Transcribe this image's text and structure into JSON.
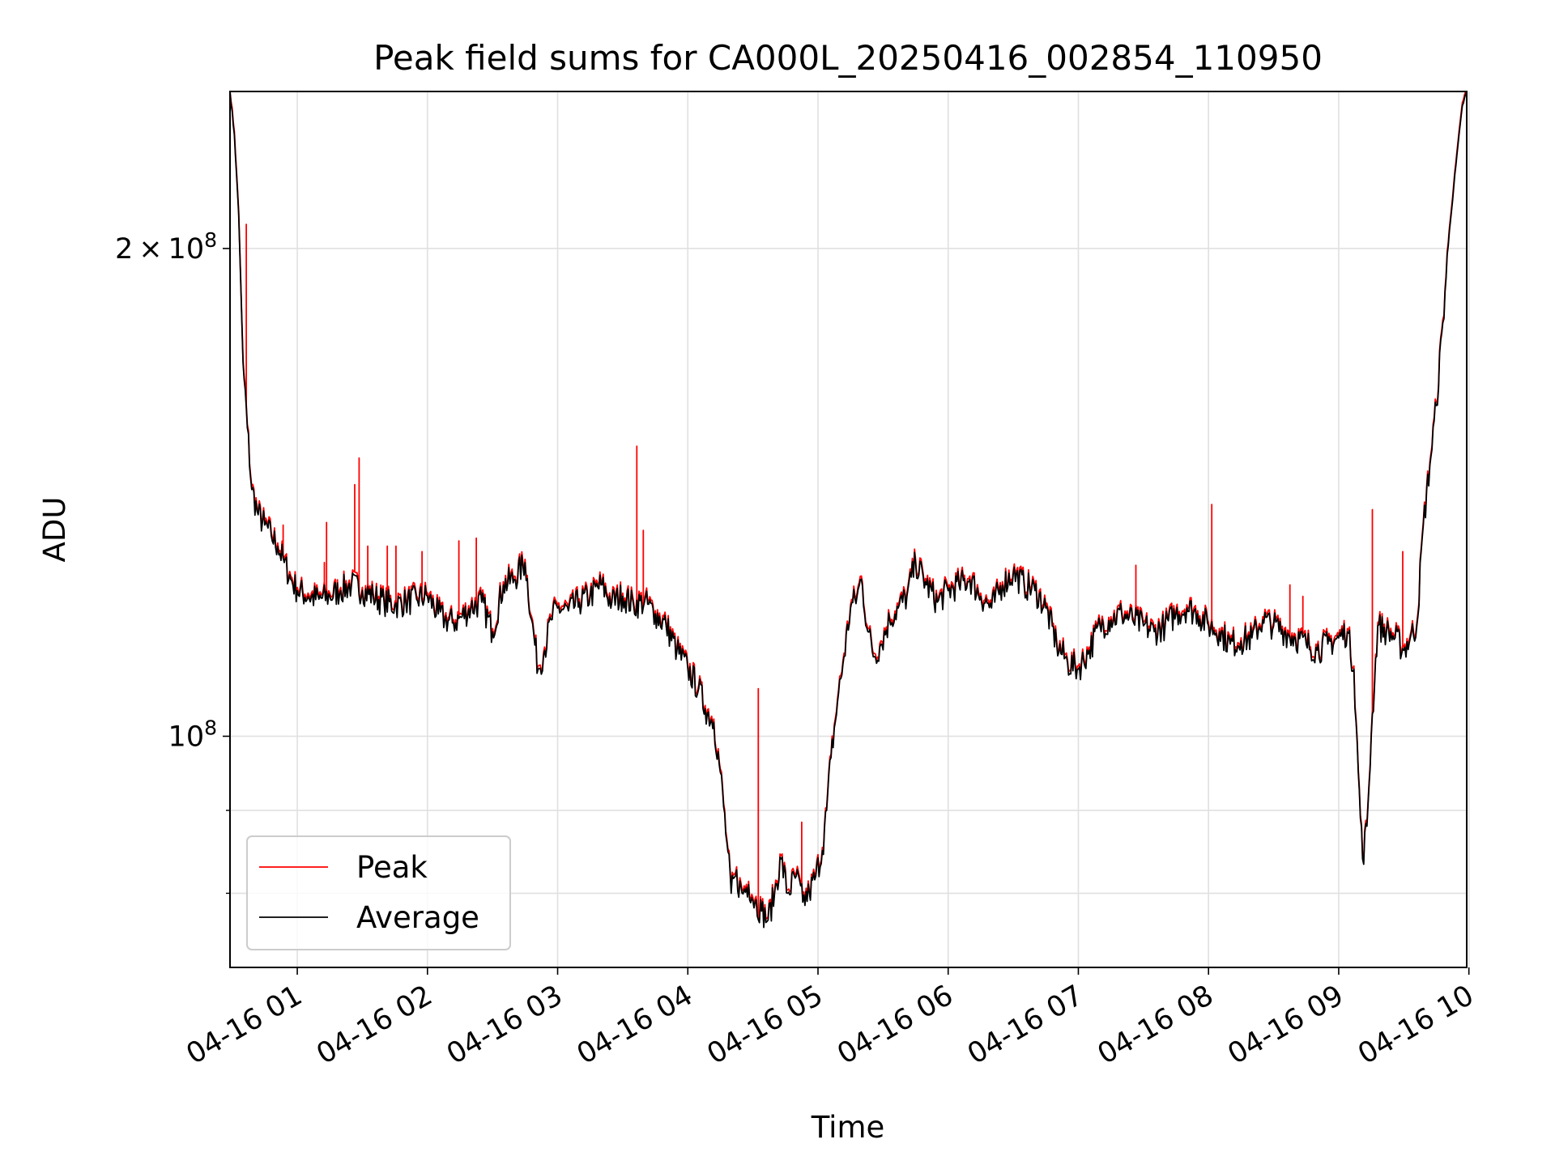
{
  "chart_data": {
    "type": "line",
    "title": "Peak field sums for CA000L_20250416_002854_110950",
    "xlabel": "Time",
    "ylabel": "ADU",
    "yscale": "log",
    "xlim": [
      "2025-04-16 00:29",
      "2025-04-16 09:59"
    ],
    "ylim": [
      72000000,
      250000000
    ],
    "grid": true,
    "legend_position": "lower-left",
    "x_ticks": [
      "04-16 01",
      "04-16 02",
      "04-16 03",
      "04-16 04",
      "04-16 05",
      "04-16 06",
      "04-16 07",
      "04-16 08",
      "04-16 09",
      "04-16 10"
    ],
    "y_tick_labels": [
      {
        "value": 100000000,
        "mantissa": "",
        "base": "10",
        "exp": "8"
      },
      {
        "value": 200000000,
        "mantissa": "2",
        "base": "10",
        "exp": "8"
      }
    ],
    "colors": {
      "peak": "#ff0000",
      "average": "#000000",
      "grid": "#e0e0e0"
    },
    "series": [
      {
        "name": "Average",
        "color": "#000000",
        "x": [
          "2025-04-16 00:29",
          "2025-04-16 00:31",
          "2025-04-16 00:33",
          "2025-04-16 00:35",
          "2025-04-16 00:37",
          "2025-04-16 00:39",
          "2025-04-16 00:42",
          "2025-04-16 00:45",
          "2025-04-16 00:48",
          "2025-04-16 00:51",
          "2025-04-16 00:54",
          "2025-04-16 00:57",
          "2025-04-16 01:00",
          "2025-04-16 01:05",
          "2025-04-16 01:10",
          "2025-04-16 01:15",
          "2025-04-16 01:20",
          "2025-04-16 01:25",
          "2025-04-16 01:30",
          "2025-04-16 01:35",
          "2025-04-16 01:40",
          "2025-04-16 01:45",
          "2025-04-16 01:50",
          "2025-04-16 01:55",
          "2025-04-16 02:00",
          "2025-04-16 02:05",
          "2025-04-16 02:08",
          "2025-04-16 02:12",
          "2025-04-16 02:16",
          "2025-04-16 02:20",
          "2025-04-16 02:25",
          "2025-04-16 02:30",
          "2025-04-16 02:35",
          "2025-04-16 02:40",
          "2025-04-16 02:45",
          "2025-04-16 02:48",
          "2025-04-16 02:51",
          "2025-04-16 02:54",
          "2025-04-16 02:57",
          "2025-04-16 03:00",
          "2025-04-16 03:05",
          "2025-04-16 03:10",
          "2025-04-16 03:15",
          "2025-04-16 03:20",
          "2025-04-16 03:25",
          "2025-04-16 03:30",
          "2025-04-16 03:35",
          "2025-04-16 03:40",
          "2025-04-16 03:45",
          "2025-04-16 03:50",
          "2025-04-16 03:55",
          "2025-04-16 04:00",
          "2025-04-16 04:05",
          "2025-04-16 04:08",
          "2025-04-16 04:12",
          "2025-04-16 04:15",
          "2025-04-16 04:18",
          "2025-04-16 04:20",
          "2025-04-16 04:22",
          "2025-04-16 04:25",
          "2025-04-16 04:28",
          "2025-04-16 04:31",
          "2025-04-16 04:34",
          "2025-04-16 04:37",
          "2025-04-16 04:40",
          "2025-04-16 04:43",
          "2025-04-16 04:46",
          "2025-04-16 04:50",
          "2025-04-16 04:53",
          "2025-04-16 04:56",
          "2025-04-16 04:59",
          "2025-04-16 05:02",
          "2025-04-16 05:04",
          "2025-04-16 05:06",
          "2025-04-16 05:09",
          "2025-04-16 05:12",
          "2025-04-16 05:15",
          "2025-04-16 05:18",
          "2025-04-16 05:20",
          "2025-04-16 05:23",
          "2025-04-16 05:26",
          "2025-04-16 05:29",
          "2025-04-16 05:33",
          "2025-04-16 05:37",
          "2025-04-16 05:41",
          "2025-04-16 05:45",
          "2025-04-16 05:50",
          "2025-04-16 05:55",
          "2025-04-16 06:00",
          "2025-04-16 06:05",
          "2025-04-16 06:10",
          "2025-04-16 06:15",
          "2025-04-16 06:20",
          "2025-04-16 06:25",
          "2025-04-16 06:30",
          "2025-04-16 06:35",
          "2025-04-16 06:40",
          "2025-04-16 06:45",
          "2025-04-16 06:50",
          "2025-04-16 06:55",
          "2025-04-16 07:00",
          "2025-04-16 07:05",
          "2025-04-16 07:10",
          "2025-04-16 07:15",
          "2025-04-16 07:20",
          "2025-04-16 07:25",
          "2025-04-16 07:30",
          "2025-04-16 07:35",
          "2025-04-16 07:40",
          "2025-04-16 07:45",
          "2025-04-16 07:50",
          "2025-04-16 07:55",
          "2025-04-16 08:00",
          "2025-04-16 08:05",
          "2025-04-16 08:10",
          "2025-04-16 08:15",
          "2025-04-16 08:20",
          "2025-04-16 08:25",
          "2025-04-16 08:30",
          "2025-04-16 08:35",
          "2025-04-16 08:40",
          "2025-04-16 08:45",
          "2025-04-16 08:50",
          "2025-04-16 08:55",
          "2025-04-16 09:00",
          "2025-04-16 09:04",
          "2025-04-16 09:07",
          "2025-04-16 09:09",
          "2025-04-16 09:11",
          "2025-04-16 09:13",
          "2025-04-16 09:15",
          "2025-04-16 09:18",
          "2025-04-16 09:22",
          "2025-04-16 09:26",
          "2025-04-16 09:30",
          "2025-04-16 09:33",
          "2025-04-16 09:36",
          "2025-04-16 09:39",
          "2025-04-16 09:42",
          "2025-04-16 09:45",
          "2025-04-16 09:48",
          "2025-04-16 09:51",
          "2025-04-16 09:54",
          "2025-04-16 09:57",
          "2025-04-16 09:59"
        ],
        "values": [
          250000000,
          235000000,
          210000000,
          170000000,
          155000000,
          142000000,
          137000000,
          135000000,
          133000000,
          131000000,
          128000000,
          125000000,
          123000000,
          122000000,
          121500000,
          122000000,
          123000000,
          124000000,
          123000000,
          122000000,
          121000000,
          120500000,
          121000000,
          121500000,
          122000000,
          119000000,
          118000000,
          117500000,
          118500000,
          120000000,
          121000000,
          116000000,
          124000000,
          125000000,
          128000000,
          118000000,
          110000000,
          113000000,
          118000000,
          120000000,
          119500000,
          121000000,
          122000000,
          124000000,
          121000000,
          122000000,
          120500000,
          121000000,
          119000000,
          117000000,
          113000000,
          110000000,
          107000000,
          104000000,
          102000000,
          95000000,
          86000000,
          80000000,
          82000000,
          80000000,
          81000000,
          79000000,
          78000000,
          77000000,
          80000000,
          84000000,
          80000000,
          82000000,
          79000000,
          80000000,
          82000000,
          85000000,
          90000000,
          97000000,
          105000000,
          112000000,
          120000000,
          122000000,
          125000000,
          116000000,
          112000000,
          114000000,
          118000000,
          120000000,
          122000000,
          128000000,
          124000000,
          121000000,
          123000000,
          124000000,
          125000000,
          122000000,
          120000000,
          124000000,
          126000000,
          124000000,
          123000000,
          120000000,
          114000000,
          111000000,
          110000000,
          113000000,
          117000000,
          118000000,
          119000000,
          118000000,
          117000000,
          116000000,
          117000000,
          119000000,
          120000000,
          119000000,
          117000000,
          116000000,
          114000000,
          114500000,
          115000000,
          118000000,
          117000000,
          116000000,
          115000000,
          114000000,
          113000000,
          114000000,
          115000000,
          116000000,
          110000000,
          95000000,
          84000000,
          88000000,
          100000000,
          117000000,
          116000000,
          115000000,
          113000000,
          115000000,
          117000000,
          135000000,
          147000000,
          160000000,
          180000000,
          205000000,
          225000000,
          245000000,
          250000000
        ]
      },
      {
        "name": "Peak",
        "color": "#ff0000",
        "spikes": [
          {
            "x": "2025-04-16 00:37",
            "y": 207000000
          },
          {
            "x": "2025-04-16 00:54",
            "y": 135000000
          },
          {
            "x": "2025-04-16 01:13",
            "y": 128000000
          },
          {
            "x": "2025-04-16 01:14",
            "y": 135500000
          },
          {
            "x": "2025-04-16 01:27",
            "y": 143000000
          },
          {
            "x": "2025-04-16 01:29",
            "y": 148500000
          },
          {
            "x": "2025-04-16 01:33",
            "y": 131000000
          },
          {
            "x": "2025-04-16 01:42",
            "y": 131000000
          },
          {
            "x": "2025-04-16 01:46",
            "y": 131000000
          },
          {
            "x": "2025-04-16 01:58",
            "y": 130000000
          },
          {
            "x": "2025-04-16 02:15",
            "y": 132000000
          },
          {
            "x": "2025-04-16 02:23",
            "y": 132500000
          },
          {
            "x": "2025-04-16 03:37",
            "y": 151000000
          },
          {
            "x": "2025-04-16 03:40",
            "y": 134000000
          },
          {
            "x": "2025-04-16 04:33",
            "y": 107000000
          },
          {
            "x": "2025-04-16 04:53",
            "y": 88500000
          },
          {
            "x": "2025-04-16 07:27",
            "y": 127500000
          },
          {
            "x": "2025-04-16 08:02",
            "y": 139000000
          },
          {
            "x": "2025-04-16 08:38",
            "y": 124000000
          },
          {
            "x": "2025-04-16 08:44",
            "y": 122000000
          },
          {
            "x": "2025-04-16 09:16",
            "y": 138000000
          },
          {
            "x": "2025-04-16 09:30",
            "y": 130000000
          }
        ]
      }
    ]
  }
}
